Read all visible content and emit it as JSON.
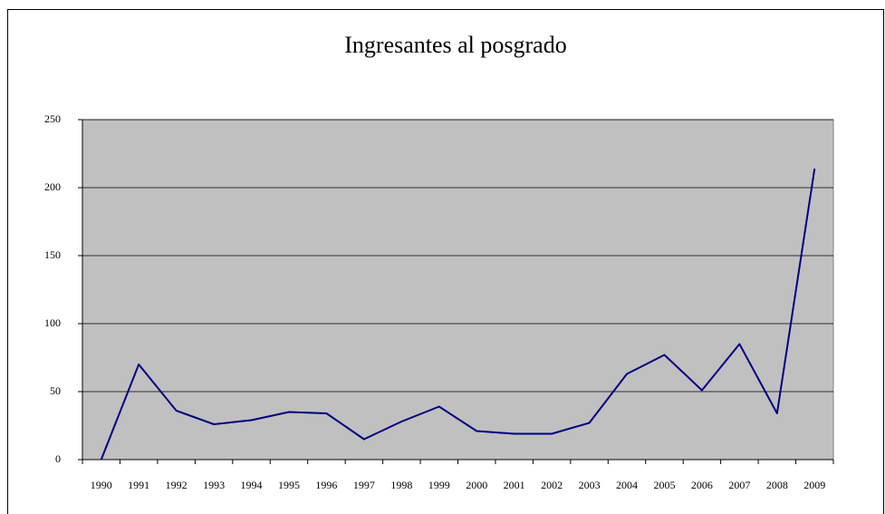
{
  "chart_data": {
    "type": "line",
    "title": "Ingresantes al posgrado",
    "categories": [
      "1990",
      "1991",
      "1992",
      "1993",
      "1994",
      "1995",
      "1996",
      "1997",
      "1998",
      "1999",
      "2000",
      "2001",
      "2002",
      "2003",
      "2004",
      "2005",
      "2006",
      "2007",
      "2008",
      "2009"
    ],
    "values": [
      0,
      70,
      36,
      26,
      29,
      35,
      34,
      15,
      28,
      39,
      21,
      19,
      19,
      27,
      63,
      77,
      51,
      85,
      34,
      214
    ],
    "color": "#000080",
    "background": "#c0c0c0",
    "ylim": [
      0,
      250
    ],
    "yticks": [
      0,
      50,
      100,
      150,
      200,
      250
    ],
    "grid": true
  }
}
